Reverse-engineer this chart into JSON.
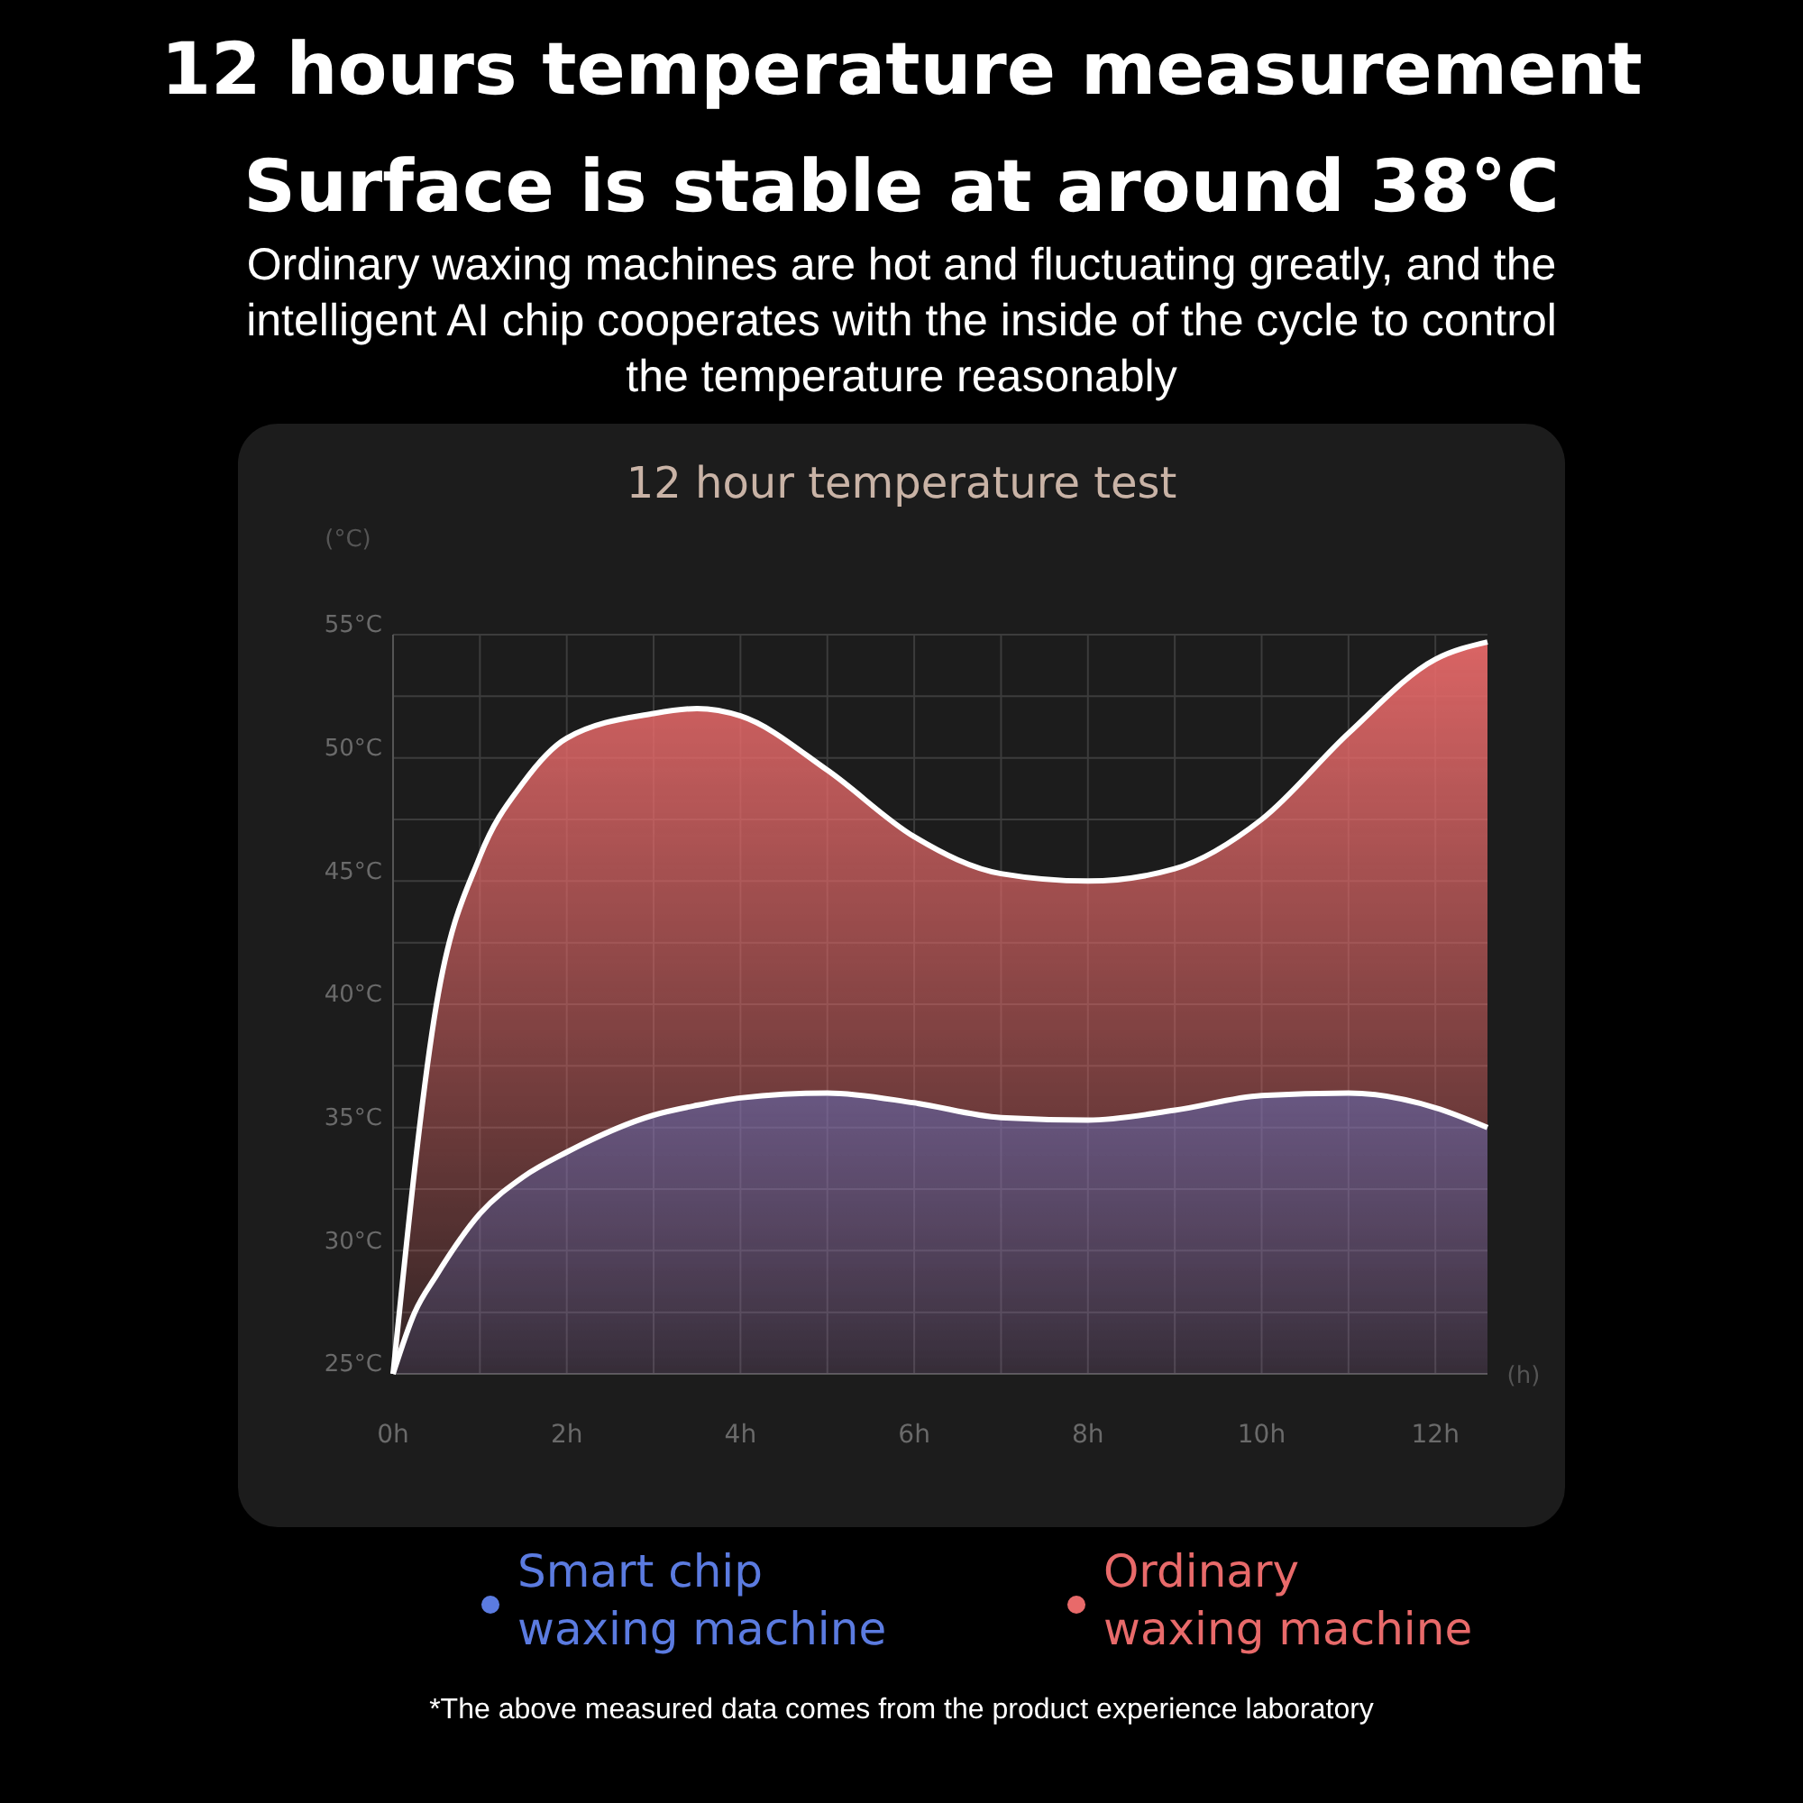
{
  "chart_data": {
    "type": "area",
    "title": "12 hours temperature measurement",
    "subtitle": "Surface is stable at around 38°C",
    "annotations": [
      "Ordinary waxing machines are hot and fluctuating greatly, and the intelligent AI chip cooperates with the inside of the cycle to control the temperature reasonably",
      "12 hour temperature test",
      "*The above measured data comes from the product experience laboratory"
    ],
    "xlabel": "(h)",
    "ylabel": "(°C)",
    "x": [
      0,
      0.25,
      0.5,
      1,
      1.5,
      2,
      3,
      3.5,
      4,
      5,
      6,
      7,
      8,
      9,
      10,
      11,
      12,
      12.6
    ],
    "series": [
      {
        "name": "Ordinary waxing machine",
        "color": "#e86a6a",
        "x": [
          0,
          0.5,
          1,
          1.5,
          2,
          3,
          3.5,
          4,
          5,
          6,
          7,
          8,
          9,
          10,
          11,
          12,
          12.6
        ],
        "values": [
          25,
          40,
          46,
          49,
          50.8,
          51.8,
          52,
          51.7,
          49.5,
          46.8,
          45.3,
          45,
          45.5,
          47.5,
          51,
          54,
          54.7
        ]
      },
      {
        "name": "Smart chip waxing machine",
        "color": "#5b7be0",
        "values": [
          25,
          27.5,
          29,
          31.5,
          33,
          34,
          35.5,
          35.9,
          36.2,
          36.4,
          36,
          35.4,
          35.3,
          35.7,
          36.3,
          36.4,
          35.8,
          35
        ]
      }
    ],
    "xlim": [
      0,
      12.6
    ],
    "ylim": [
      25,
      55
    ],
    "xticks": [
      {
        "value": 0,
        "label": "0h"
      },
      {
        "value": 2,
        "label": "2h"
      },
      {
        "value": 4,
        "label": "4h"
      },
      {
        "value": 6,
        "label": "6h"
      },
      {
        "value": 8,
        "label": "8h"
      },
      {
        "value": 10,
        "label": "10h"
      },
      {
        "value": 12,
        "label": "12h"
      }
    ],
    "yticks": [
      {
        "value": 25,
        "label": "25°C"
      },
      {
        "value": 30,
        "label": "30°C"
      },
      {
        "value": 35,
        "label": "35°C"
      },
      {
        "value": 40,
        "label": "40°C"
      },
      {
        "value": 45,
        "label": "45°C"
      },
      {
        "value": 50,
        "label": "50°C"
      },
      {
        "value": 55,
        "label": "55°C"
      }
    ],
    "grid": true,
    "legend": "bottom"
  }
}
